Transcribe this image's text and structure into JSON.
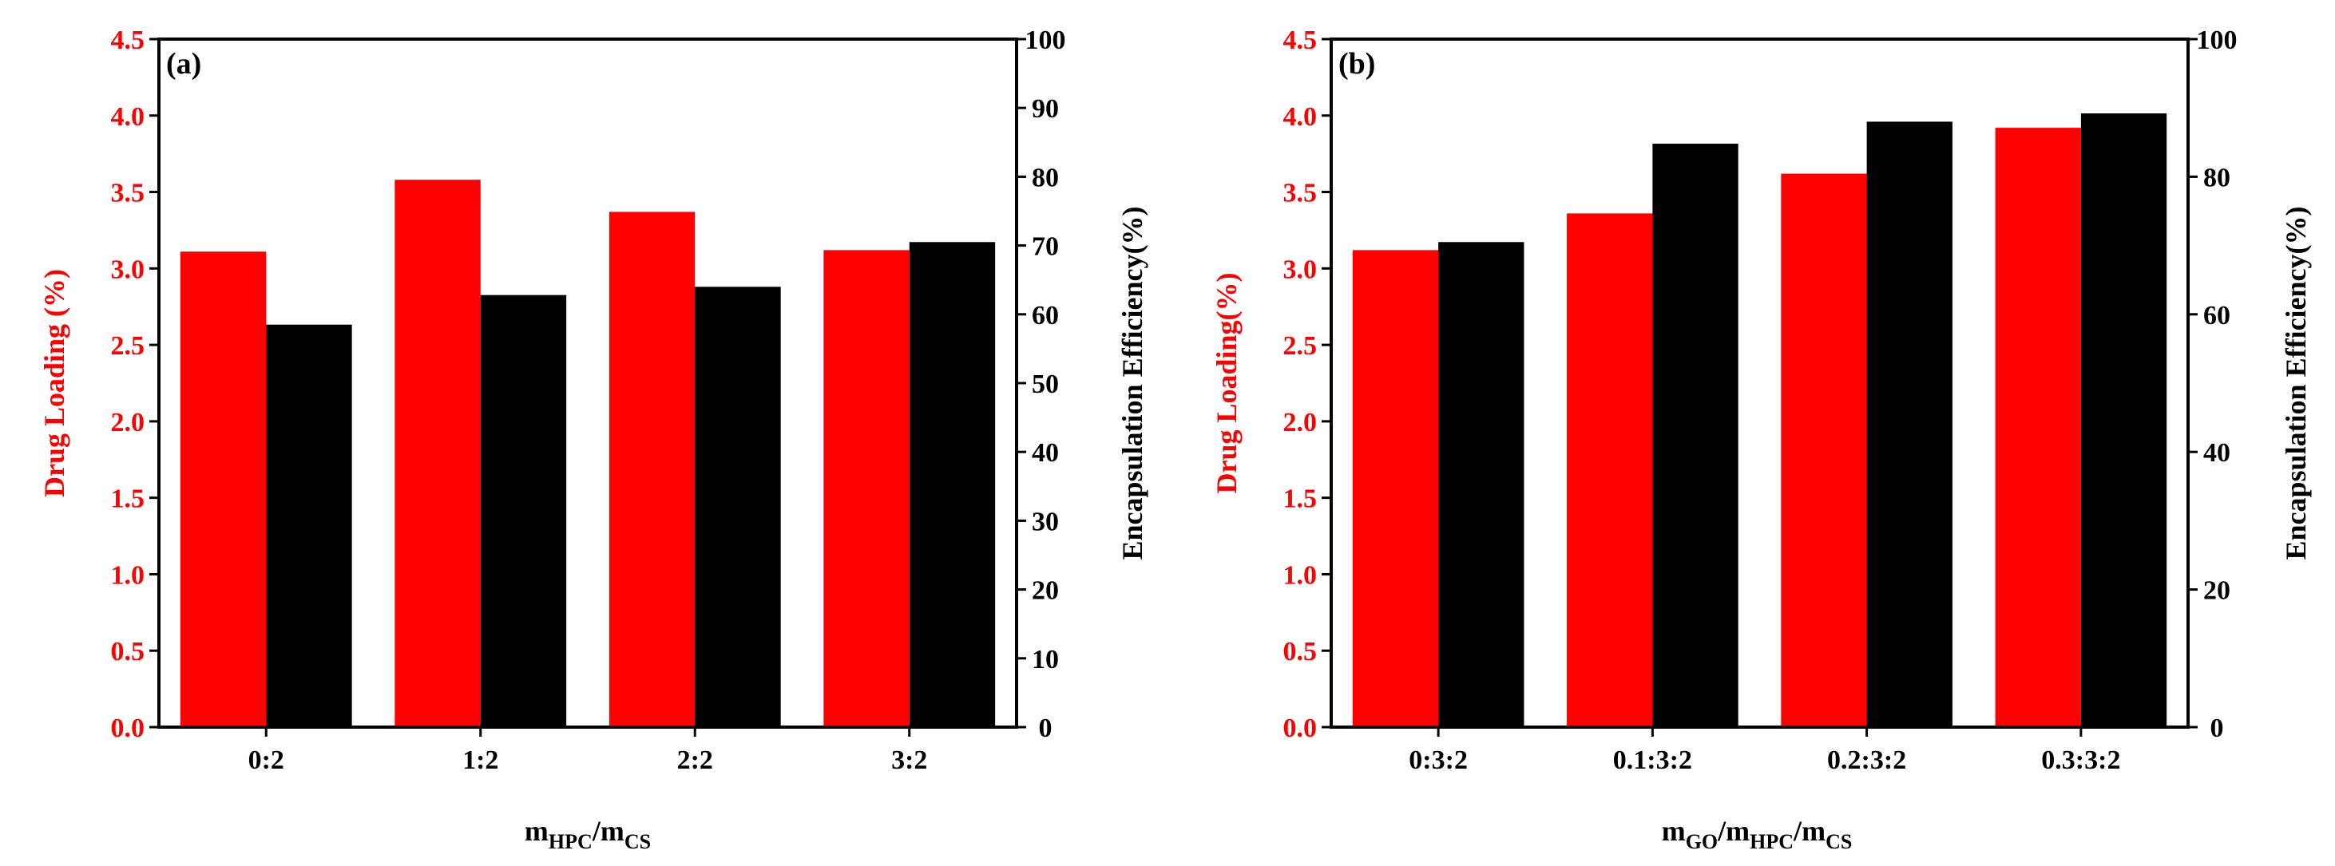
{
  "chart_data": [
    {
      "type": "bar",
      "panel_label": "(a)",
      "categories": [
        "0:2",
        "1:2",
        "2:2",
        "3:2"
      ],
      "xlabel": {
        "base1": "m",
        "sub1": "HPC",
        "sep1": "/",
        "base2": "m",
        "sub2": "CS"
      },
      "ylabel_left": "Drug Loading (%)",
      "ylabel_right": "Encapsulation Efficiency(%)",
      "ylim_left": [
        0,
        4.5
      ],
      "yticks_left": [
        "0.0",
        "0.5",
        "1.0",
        "1.5",
        "2.0",
        "2.5",
        "3.0",
        "3.5",
        "4.0",
        "4.5"
      ],
      "ylim_right": [
        0,
        100
      ],
      "yticks_right": [
        "0",
        "10",
        "20",
        "30",
        "40",
        "50",
        "60",
        "70",
        "80",
        "90",
        "100"
      ],
      "series": [
        {
          "name": "Drug Loading",
          "axis": "left",
          "color": "#ff0000",
          "values": [
            3.11,
            3.58,
            3.37,
            3.12
          ]
        },
        {
          "name": "Encapsulation Efficiency",
          "axis": "right",
          "color": "#000000",
          "values": [
            58.5,
            62.8,
            64.0,
            70.5
          ]
        }
      ]
    },
    {
      "type": "bar",
      "panel_label": "(b)",
      "categories": [
        "0:3:2",
        "0.1:3:2",
        "0.2:3:2",
        "0.3:3:2"
      ],
      "xlabel": {
        "base1": "m",
        "sub1": "GO",
        "sep1": "/",
        "base2": "m",
        "sub2": "HPC",
        "sep2": "/",
        "base3": "m",
        "sub3": "CS"
      },
      "ylabel_left": "Drug Loading(%)",
      "ylabel_right": "Encapsulation Efficiency(%)",
      "ylim_left": [
        0,
        4.5
      ],
      "yticks_left": [
        "0.0",
        "0.5",
        "1.0",
        "1.5",
        "2.0",
        "2.5",
        "3.0",
        "3.5",
        "4.0",
        "4.5"
      ],
      "ylim_right": [
        0,
        100
      ],
      "yticks_right": [
        "0",
        "20",
        "40",
        "60",
        "80",
        "100"
      ],
      "series": [
        {
          "name": "Drug Loading",
          "axis": "left",
          "color": "#ff0000",
          "values": [
            3.12,
            3.36,
            3.62,
            3.92
          ]
        },
        {
          "name": "Encapsulation Efficiency",
          "axis": "right",
          "color": "#000000",
          "values": [
            70.5,
            84.8,
            88.0,
            89.2
          ]
        }
      ]
    }
  ]
}
